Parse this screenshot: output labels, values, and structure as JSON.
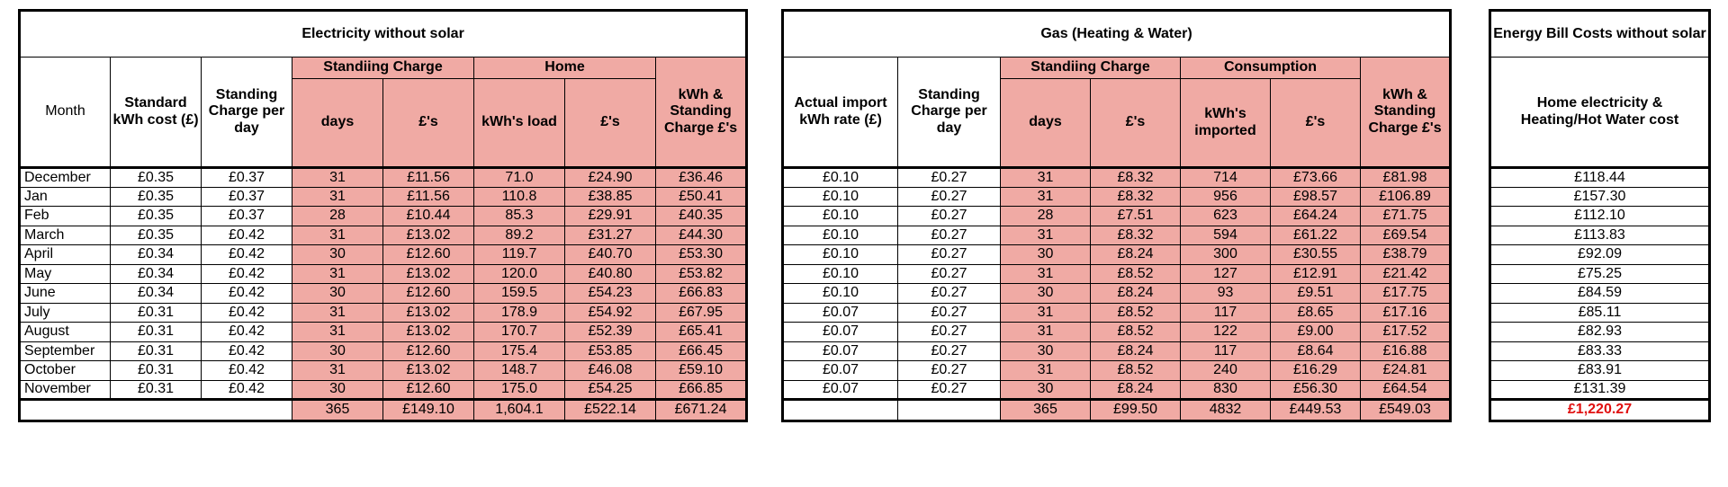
{
  "electricity": {
    "title": "Electricity without solar",
    "headers": {
      "month": "Month",
      "std_cost": "Standard kWh cost (£)",
      "standing_per_day": "Standing Charge per day",
      "group_standing": "Standiing Charge",
      "group_home": "Home",
      "days": "days",
      "pounds": "£'s",
      "kwh_load": "kWh's load",
      "pounds2": "£'s",
      "total": "kWh & Standing Charge £'s"
    },
    "rows": [
      [
        "December",
        "£0.35",
        "£0.37",
        "31",
        "£11.56",
        "71.0",
        "£24.90",
        "£36.46"
      ],
      [
        "Jan",
        "£0.35",
        "£0.37",
        "31",
        "£11.56",
        "110.8",
        "£38.85",
        "£50.41"
      ],
      [
        "Feb",
        "£0.35",
        "£0.37",
        "28",
        "£10.44",
        "85.3",
        "£29.91",
        "£40.35"
      ],
      [
        "March",
        "£0.35",
        "£0.42",
        "31",
        "£13.02",
        "89.2",
        "£31.27",
        "£44.30"
      ],
      [
        "April",
        "£0.34",
        "£0.42",
        "30",
        "£12.60",
        "119.7",
        "£40.70",
        "£53.30"
      ],
      [
        "May",
        "£0.34",
        "£0.42",
        "31",
        "£13.02",
        "120.0",
        "£40.80",
        "£53.82"
      ],
      [
        "June",
        "£0.34",
        "£0.42",
        "30",
        "£12.60",
        "159.5",
        "£54.23",
        "£66.83"
      ],
      [
        "July",
        "£0.31",
        "£0.42",
        "31",
        "£13.02",
        "178.9",
        "£54.92",
        "£67.95"
      ],
      [
        "August",
        "£0.31",
        "£0.42",
        "31",
        "£13.02",
        "170.7",
        "£52.39",
        "£65.41"
      ],
      [
        "September",
        "£0.31",
        "£0.42",
        "30",
        "£12.60",
        "175.4",
        "£53.85",
        "£66.45"
      ],
      [
        "October",
        "£0.31",
        "£0.42",
        "31",
        "£13.02",
        "148.7",
        "£46.08",
        "£59.10"
      ],
      [
        "November",
        "£0.31",
        "£0.42",
        "30",
        "£12.60",
        "175.0",
        "£54.25",
        "£66.85"
      ]
    ],
    "totals": [
      "365",
      "£149.10",
      "1,604.1",
      "£522.14",
      "£671.24"
    ]
  },
  "gas": {
    "title": "Gas (Heating & Water)",
    "headers": {
      "import_rate": "Actual import kWh rate (£)",
      "standing_per_day": "Standing Charge per day",
      "group_standing": "Standiing Charge",
      "group_consumption": "Consumption",
      "days": "days",
      "pounds": "£'s",
      "kwh_imported": "kWh's imported",
      "pounds2": "£'s",
      "total": "kWh & Standing Charge £'s"
    },
    "rows": [
      [
        "£0.10",
        "£0.27",
        "31",
        "£8.32",
        "714",
        "£73.66",
        "£81.98"
      ],
      [
        "£0.10",
        "£0.27",
        "31",
        "£8.32",
        "956",
        "£98.57",
        "£106.89"
      ],
      [
        "£0.10",
        "£0.27",
        "28",
        "£7.51",
        "623",
        "£64.24",
        "£71.75"
      ],
      [
        "£0.10",
        "£0.27",
        "31",
        "£8.32",
        "594",
        "£61.22",
        "£69.54"
      ],
      [
        "£0.10",
        "£0.27",
        "30",
        "£8.24",
        "300",
        "£30.55",
        "£38.79"
      ],
      [
        "£0.10",
        "£0.27",
        "31",
        "£8.52",
        "127",
        "£12.91",
        "£21.42"
      ],
      [
        "£0.10",
        "£0.27",
        "30",
        "£8.24",
        "93",
        "£9.51",
        "£17.75"
      ],
      [
        "£0.07",
        "£0.27",
        "31",
        "£8.52",
        "117",
        "£8.65",
        "£17.16"
      ],
      [
        "£0.07",
        "£0.27",
        "31",
        "£8.52",
        "122",
        "£9.00",
        "£17.52"
      ],
      [
        "£0.07",
        "£0.27",
        "30",
        "£8.24",
        "117",
        "£8.64",
        "£16.88"
      ],
      [
        "£0.07",
        "£0.27",
        "31",
        "£8.52",
        "240",
        "£16.29",
        "£24.81"
      ],
      [
        "£0.07",
        "£0.27",
        "30",
        "£8.24",
        "830",
        "£56.30",
        "£64.54"
      ]
    ],
    "totals": [
      "365",
      "£99.50",
      "4832",
      "£449.53",
      "£549.03"
    ]
  },
  "bill": {
    "title": "Energy Bill Costs without solar",
    "header": "Home electricity & Heating/Hot Water cost",
    "rows": [
      "£118.44",
      "£157.30",
      "£112.10",
      "£113.83",
      "£92.09",
      "£75.25",
      "£84.59",
      "£85.11",
      "£82.93",
      "£83.33",
      "£83.91",
      "£131.39"
    ],
    "total": "£1,220.27",
    "total_color": "#e01010"
  },
  "colors": {
    "highlight": "#f0aaa4",
    "border": "#000000"
  }
}
